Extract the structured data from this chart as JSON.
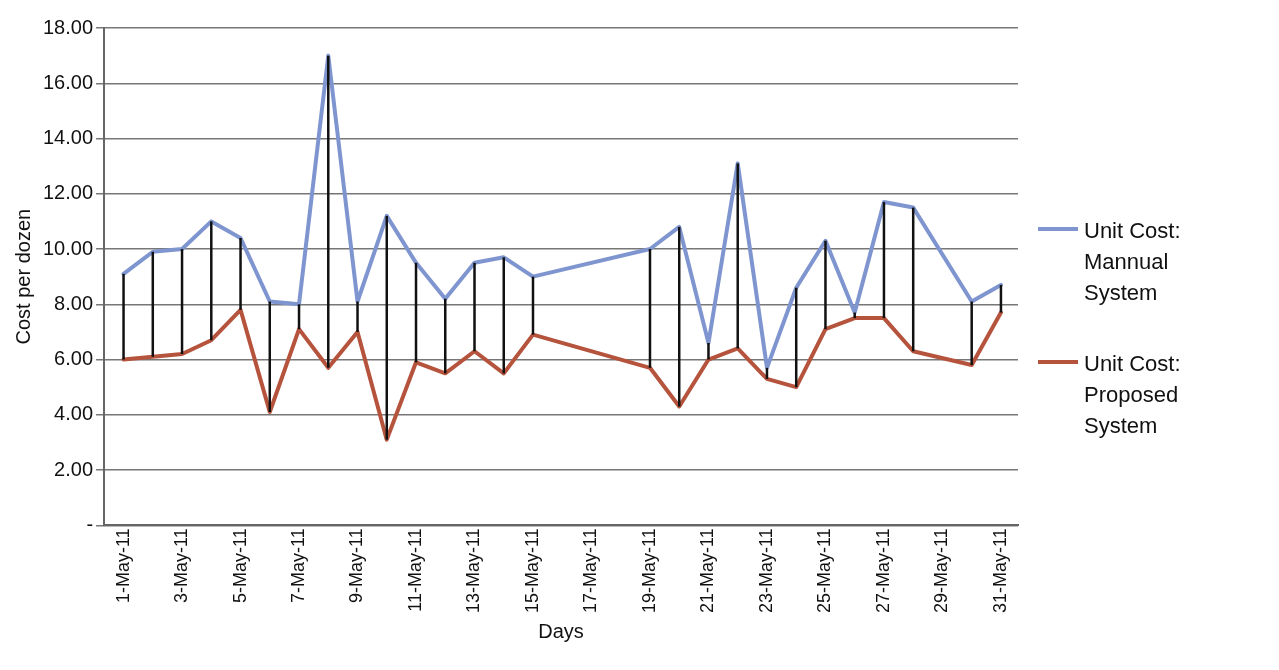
{
  "chart_data": {
    "type": "line",
    "xlabel": "Days",
    "ylabel": "Cost per dozen",
    "x": [
      "--05-01",
      "--05-02",
      "--05-03",
      "--05-04",
      "--05-05",
      "--05-06",
      "--05-07",
      "--05-08",
      "--05-09",
      "--05-10",
      "--05-11",
      "--05-12",
      "--05-13",
      "--05-14",
      "--05-15",
      "--05-19",
      "--05-20",
      "--05-21",
      "--05-22",
      "--05-23",
      "--05-24",
      "--05-25",
      "--05-26",
      "--05-27",
      "--05-28",
      "--05-30",
      "--05-31"
    ],
    "series": [
      {
        "name": "Unit Cost: Mannual System",
        "color": "#7f95cf",
        "values": [
          9.1,
          9.9,
          10.0,
          11.0,
          10.4,
          8.1,
          8.0,
          17.0,
          8.1,
          11.2,
          9.5,
          8.2,
          9.5,
          9.7,
          9.0,
          10.0,
          10.8,
          6.6,
          13.1,
          5.7,
          8.6,
          10.3,
          7.7,
          11.7,
          11.5,
          8.1,
          8.7
        ],
        "errors": [
          [
            6.0,
            9.1
          ],
          [
            6.1,
            9.9
          ],
          [
            6.2,
            10.0
          ],
          [
            6.7,
            11.0
          ],
          [
            7.8,
            10.4
          ],
          [
            4.1,
            8.1
          ],
          [
            7.1,
            8.0
          ],
          [
            5.7,
            17.0
          ],
          [
            7.0,
            8.1
          ],
          [
            3.1,
            11.2
          ],
          [
            5.9,
            9.5
          ],
          [
            5.5,
            8.2
          ],
          [
            6.3,
            9.5
          ],
          [
            5.5,
            9.7
          ],
          [
            6.9,
            9.0
          ],
          [
            5.7,
            10.0
          ],
          [
            4.3,
            10.8
          ],
          [
            6.0,
            6.6
          ],
          [
            6.4,
            13.1
          ],
          [
            5.3,
            5.7
          ],
          [
            5.0,
            8.6
          ],
          [
            7.1,
            10.3
          ],
          [
            7.5,
            7.7
          ],
          [
            7.5,
            11.7
          ],
          [
            6.3,
            11.5
          ],
          [
            5.8,
            8.1
          ],
          [
            7.7,
            8.7
          ]
        ]
      },
      {
        "name": "Unit Cost: Proposed System",
        "color": "#b5533c",
        "values": [
          6.0,
          6.1,
          6.2,
          6.7,
          7.8,
          4.1,
          7.1,
          5.7,
          7.0,
          3.1,
          5.9,
          5.5,
          6.3,
          5.5,
          6.9,
          5.7,
          4.3,
          6.0,
          6.4,
          5.3,
          5.0,
          7.1,
          7.5,
          7.5,
          6.3,
          5.8,
          7.7
        ]
      }
    ],
    "xlim": [
      "--04-30T08:00",
      "--05-31T14:00"
    ],
    "xticks": [
      {
        "value": "--05-01",
        "label": "1-May-11"
      },
      {
        "value": "--05-03",
        "label": "3-May-11"
      },
      {
        "value": "--05-05",
        "label": "5-May-11"
      },
      {
        "value": "--05-07",
        "label": "7-May-11"
      },
      {
        "value": "--05-09",
        "label": "9-May-11"
      },
      {
        "value": "--05-11",
        "label": "11-May-11"
      },
      {
        "value": "--05-13",
        "label": "13-May-11"
      },
      {
        "value": "--05-15",
        "label": "15-May-11"
      },
      {
        "value": "--05-17",
        "label": "17-May-11"
      },
      {
        "value": "--05-19",
        "label": "19-May-11"
      },
      {
        "value": "--05-21",
        "label": "21-May-11"
      },
      {
        "value": "--05-23",
        "label": "23-May-11"
      },
      {
        "value": "--05-25",
        "label": "25-May-11"
      },
      {
        "value": "--05-27",
        "label": "27-May-11"
      },
      {
        "value": "--05-29",
        "label": "29-May-11"
      },
      {
        "value": "--05-31",
        "label": "31-May-11"
      }
    ],
    "ylim": [
      0,
      18
    ],
    "yticks": [
      {
        "value": 0,
        "label": "-"
      },
      {
        "value": 2,
        "label": "2.00"
      },
      {
        "value": 4,
        "label": "4.00"
      },
      {
        "value": 6,
        "label": "6.00"
      },
      {
        "value": 8,
        "label": "8.00"
      },
      {
        "value": 10,
        "label": "10.00"
      },
      {
        "value": 12,
        "label": "12.00"
      },
      {
        "value": 14,
        "label": "14.00"
      },
      {
        "value": 16,
        "label": "16.00"
      },
      {
        "value": 18,
        "label": "18.00"
      }
    ],
    "grid": "y",
    "legend": "right",
    "marker": "none",
    "line_style": "solid"
  }
}
